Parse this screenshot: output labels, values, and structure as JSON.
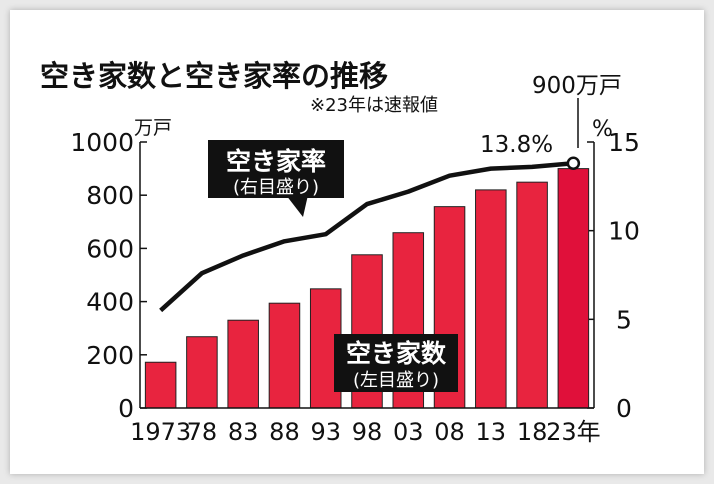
{
  "chart_data": {
    "type": "bar",
    "title": "空き家数と空き家率の推移",
    "note": "※23年は速報値",
    "categories": [
      "1973",
      "78",
      "83",
      "88",
      "93",
      "98",
      "03",
      "08",
      "13",
      "18",
      "23年"
    ],
    "left_axis": {
      "unit": "万戸",
      "range": [
        0,
        1000
      ],
      "ticks": [
        "0",
        "200",
        "400",
        "600",
        "800",
        "1000"
      ]
    },
    "right_axis": {
      "unit": "%",
      "range": [
        0,
        15
      ],
      "ticks": [
        "0",
        "5",
        "10",
        "15"
      ]
    },
    "series": [
      {
        "name": "空き家数",
        "sub": "(左目盛り)",
        "type": "bar",
        "axis": "left",
        "values": [
          172,
          268,
          330,
          394,
          448,
          576,
          659,
          757,
          820,
          849,
          900
        ]
      },
      {
        "name": "空き家率",
        "sub": "(右目盛り)",
        "type": "line",
        "axis": "right",
        "values": [
          5.5,
          7.6,
          8.6,
          9.4,
          9.8,
          11.5,
          12.2,
          13.1,
          13.5,
          13.6,
          13.8
        ]
      }
    ],
    "annotations": {
      "last_bar": "900万戸",
      "last_rate": "13.8%"
    },
    "colors": {
      "bar": "#e8243f",
      "bar_last": "#e0103a",
      "line": "#111111",
      "label_bg": "#111111",
      "label_text": "#ffffff"
    },
    "grid": false
  }
}
